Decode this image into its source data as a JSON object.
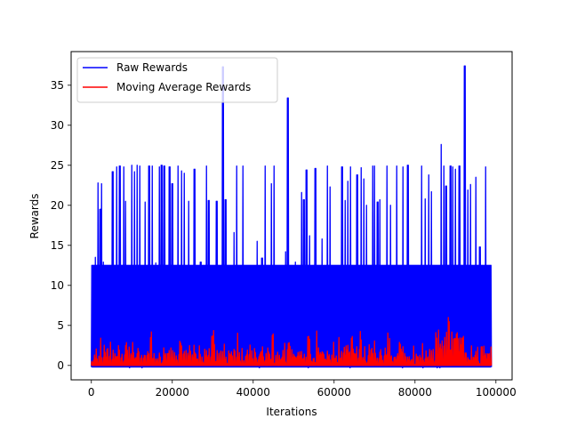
{
  "chart_data": {
    "type": "line",
    "title": "",
    "xlabel": "Iterations",
    "ylabel": "Rewards",
    "xlim": [
      -5000,
      104000
    ],
    "ylim": [
      -1.8,
      39.2
    ],
    "xticks": [
      0,
      20000,
      40000,
      60000,
      80000,
      100000
    ],
    "xtick_labels": [
      "0",
      "20000",
      "40000",
      "60000",
      "80000",
      "100000"
    ],
    "yticks": [
      0,
      5,
      10,
      15,
      20,
      25,
      30,
      35
    ],
    "ytick_labels": [
      "0",
      "5",
      "10",
      "15",
      "20",
      "25",
      "30",
      "35"
    ],
    "legend_position": "top-left",
    "grid": false,
    "series": [
      {
        "name": "Raw Rewards",
        "color": "#0000ff",
        "x_range": [
          0,
          99000
        ],
        "band": [
          -0.2,
          12.5
        ],
        "spikes": [
          [
            1000,
            13.5
          ],
          [
            1600,
            22.8
          ],
          [
            2200,
            19.5
          ],
          [
            2500,
            22.7
          ],
          [
            3000,
            12.9
          ],
          [
            5300,
            24.2
          ],
          [
            6200,
            24.8
          ],
          [
            7000,
            24.9
          ],
          [
            8000,
            24.8
          ],
          [
            8500,
            20.5
          ],
          [
            10000,
            25.0
          ],
          [
            10600,
            24.2
          ],
          [
            11300,
            25.0
          ],
          [
            12000,
            24.9
          ],
          [
            13300,
            20.4
          ],
          [
            14300,
            24.9
          ],
          [
            15000,
            24.9
          ],
          [
            16000,
            12.8
          ],
          [
            16800,
            24.8
          ],
          [
            17400,
            25.0
          ],
          [
            18000,
            24.9
          ],
          [
            19300,
            24.8
          ],
          [
            20000,
            22.7
          ],
          [
            21400,
            24.9
          ],
          [
            22300,
            24.3
          ],
          [
            23000,
            24.0
          ],
          [
            24000,
            20.5
          ],
          [
            25500,
            24.5
          ],
          [
            27000,
            12.9
          ],
          [
            28500,
            24.9
          ],
          [
            29000,
            20.6
          ],
          [
            31000,
            20.5
          ],
          [
            32500,
            37.3
          ],
          [
            33200,
            20.7
          ],
          [
            35300,
            16.6
          ],
          [
            36000,
            24.9
          ],
          [
            37500,
            24.9
          ],
          [
            41000,
            15.5
          ],
          [
            42200,
            13.4
          ],
          [
            43000,
            24.9
          ],
          [
            44500,
            22.7
          ],
          [
            45200,
            24.9
          ],
          [
            48000,
            14.2
          ],
          [
            48600,
            33.4
          ],
          [
            50500,
            12.9
          ],
          [
            52000,
            21.6
          ],
          [
            52500,
            20.7
          ],
          [
            53200,
            24.4
          ],
          [
            54000,
            16.2
          ],
          [
            55400,
            24.6
          ],
          [
            57000,
            15.8
          ],
          [
            58300,
            24.9
          ],
          [
            59000,
            22.3
          ],
          [
            62000,
            24.8
          ],
          [
            62800,
            20.6
          ],
          [
            63400,
            23.0
          ],
          [
            64000,
            24.8
          ],
          [
            65700,
            23.8
          ],
          [
            66700,
            24.7
          ],
          [
            67300,
            23.3
          ],
          [
            68000,
            20.0
          ],
          [
            69500,
            24.9
          ],
          [
            70000,
            24.9
          ],
          [
            70800,
            20.4
          ],
          [
            71300,
            20.7
          ],
          [
            73000,
            24.9
          ],
          [
            74000,
            20.0
          ],
          [
            75500,
            24.9
          ],
          [
            77000,
            24.8
          ],
          [
            78200,
            25.0
          ],
          [
            81600,
            24.9
          ],
          [
            82500,
            20.8
          ],
          [
            83400,
            23.8
          ],
          [
            84000,
            21.7
          ],
          [
            86500,
            27.6
          ],
          [
            87200,
            24.9
          ],
          [
            87700,
            22.4
          ],
          [
            88800,
            24.9
          ],
          [
            89400,
            24.8
          ],
          [
            90000,
            24.5
          ],
          [
            91000,
            24.9
          ],
          [
            92300,
            37.4
          ],
          [
            93100,
            21.9
          ],
          [
            93700,
            22.6
          ],
          [
            95100,
            23.5
          ],
          [
            96000,
            14.8
          ],
          [
            97500,
            24.8
          ]
        ]
      },
      {
        "name": "Moving Average Rewards",
        "color": "#ff0000",
        "x_range": [
          0,
          99000
        ],
        "band": [
          0,
          2.2
        ],
        "peaks": [
          [
            2000,
            5.8
          ],
          [
            2500,
            4.4
          ],
          [
            14800,
            4.2
          ],
          [
            22000,
            3.2
          ],
          [
            26000,
            4.8
          ],
          [
            30000,
            4.5
          ],
          [
            32600,
            3.3
          ],
          [
            36300,
            4.1
          ],
          [
            40800,
            3.8
          ],
          [
            45000,
            4.0
          ],
          [
            48800,
            3.4
          ],
          [
            53700,
            4.5
          ],
          [
            55900,
            5.3
          ],
          [
            61300,
            3.8
          ],
          [
            64500,
            4.1
          ],
          [
            66700,
            4.5
          ],
          [
            69800,
            3.6
          ],
          [
            73500,
            4.4
          ],
          [
            79000,
            3.0
          ],
          [
            86000,
            6.0
          ],
          [
            88500,
            7.2
          ],
          [
            90500,
            4.3
          ],
          [
            92000,
            4.0
          ],
          [
            96700,
            3.1
          ],
          [
            98700,
            3.1
          ]
        ]
      }
    ]
  }
}
